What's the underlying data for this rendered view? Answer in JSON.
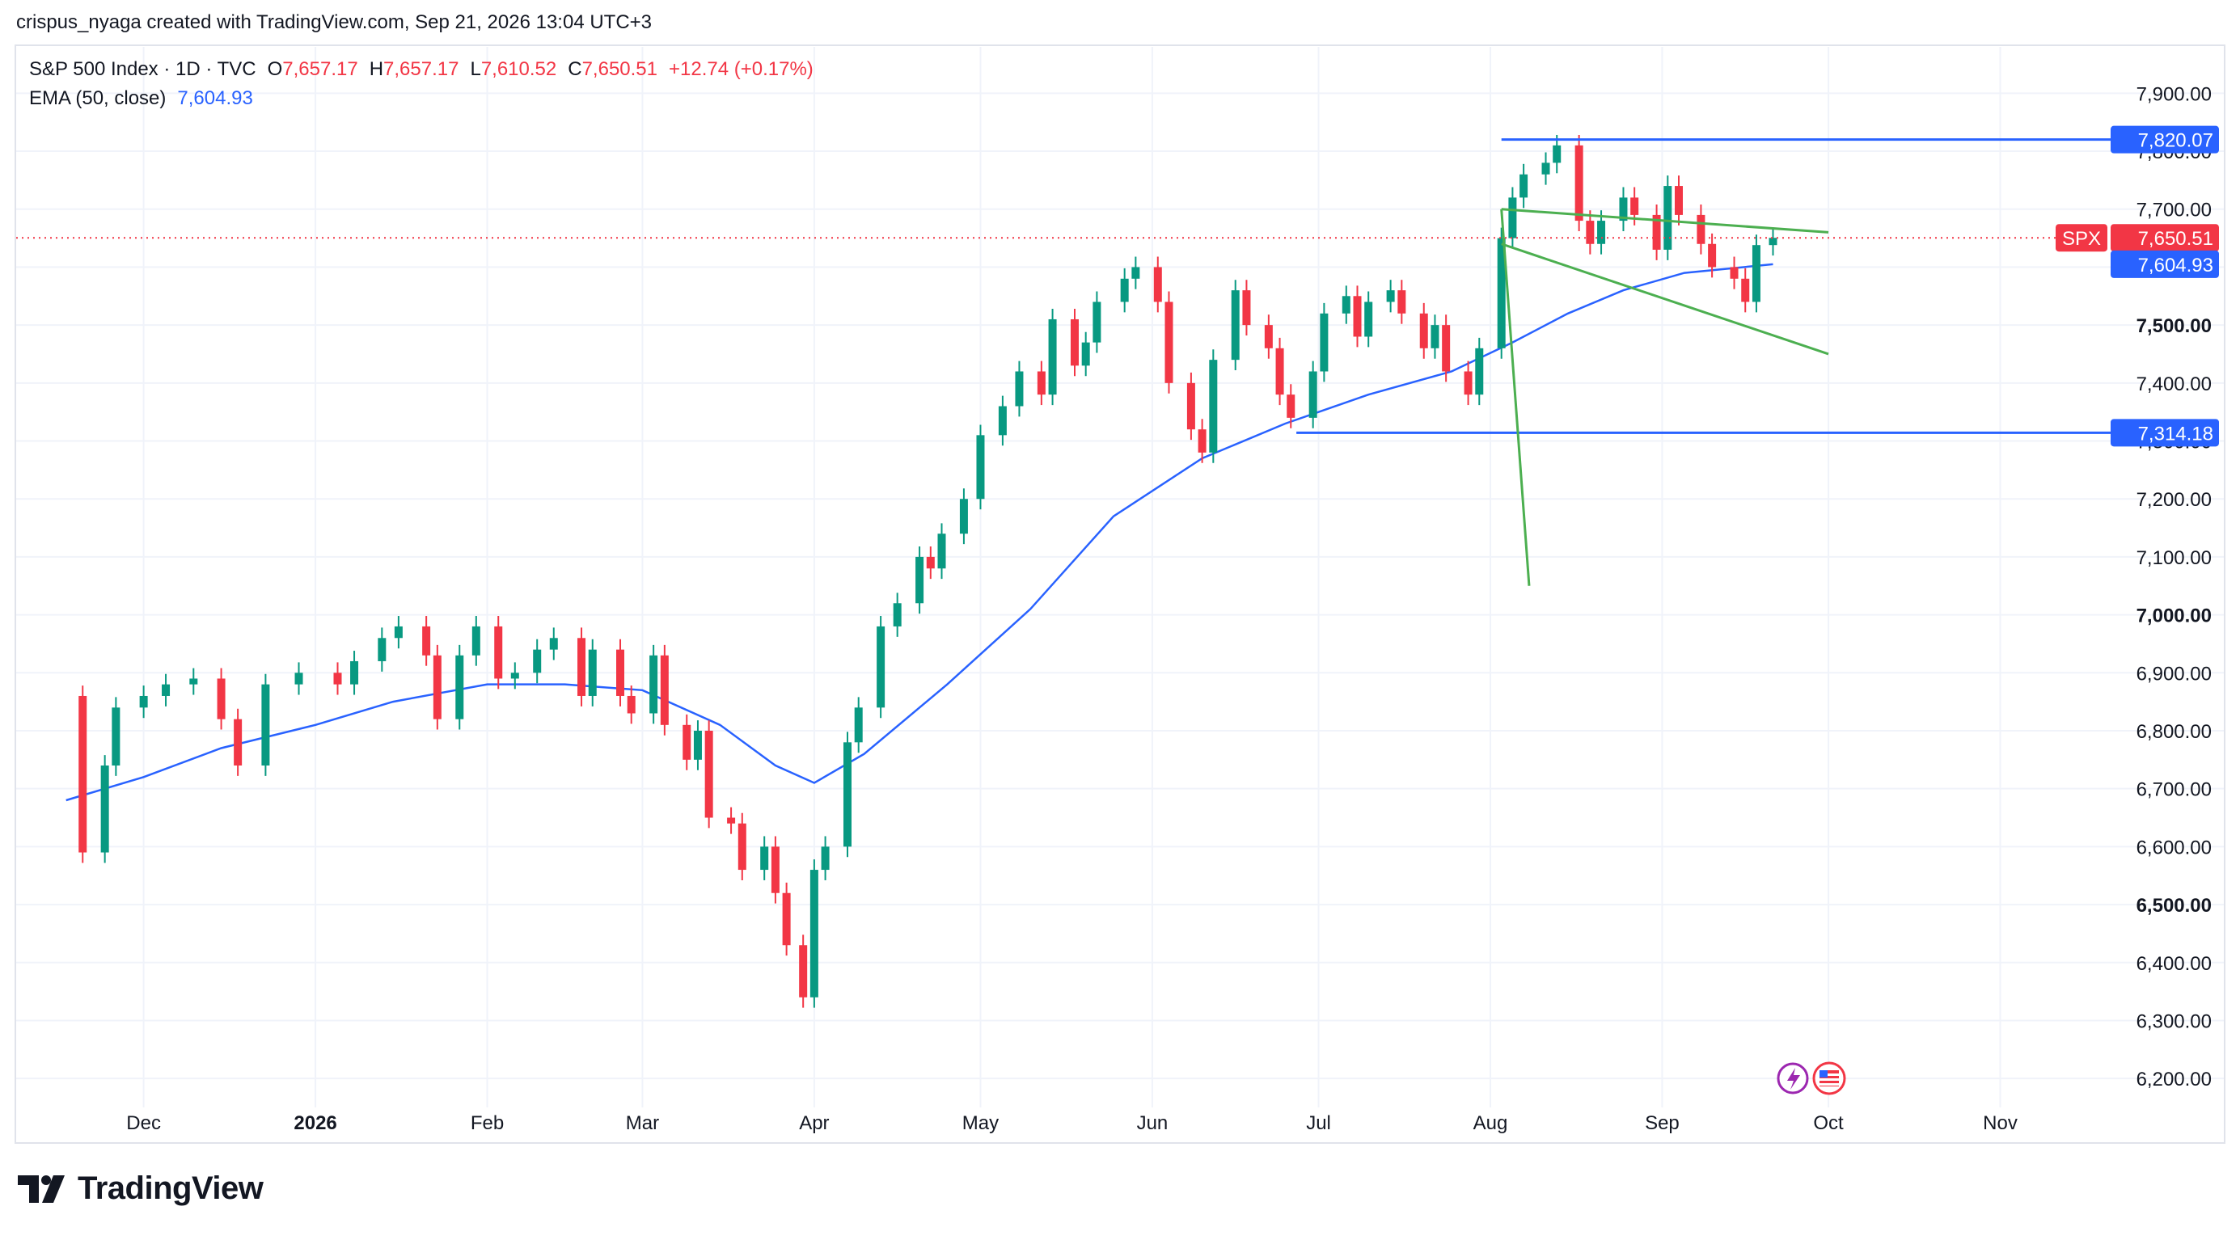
{
  "header": {
    "credit": "crispus_nyaga created with TradingView.com, Sep 21, 2026 13:04 UTC+3"
  },
  "legend": {
    "symbol": "S&P 500 Index · 1D · TVC",
    "open_label": "O",
    "open": "7,657.17",
    "high_label": "H",
    "high": "7,657.17",
    "low_label": "L",
    "low": "7,610.52",
    "close_label": "C",
    "close": "7,650.51",
    "change": "+12.74 (+0.17%)",
    "ema_label": "EMA (50, close)",
    "ema_value": "7,604.93"
  },
  "colors": {
    "up": "#089981",
    "down": "#f23645",
    "ema": "#2962ff",
    "hline": "#2962ff",
    "channel": "#4caf50",
    "grid": "#f0f3fa",
    "price_line": "#f23645"
  },
  "chart_data": {
    "type": "candlestick",
    "symbol": "SPX",
    "timeframe": "1D",
    "ylim": [
      6150,
      7980
    ],
    "y_ticks": [
      "6,200.00",
      "6,300.00",
      "6,400.00",
      "6,500.00",
      "6,600.00",
      "6,700.00",
      "6,800.00",
      "6,900.00",
      "7,000.00",
      "7,100.00",
      "7,200.00",
      "7,300.00",
      "7,400.00",
      "7,500.00",
      "7,600.00",
      "7,700.00",
      "7,800.00",
      "7,900.00"
    ],
    "y_tick_values": [
      6200,
      6300,
      6400,
      6500,
      6600,
      6700,
      6800,
      6900,
      7000,
      7100,
      7200,
      7300,
      7400,
      7500,
      7600,
      7700,
      7800,
      7900
    ],
    "bold_ticks": [
      6500,
      7000,
      7500
    ],
    "x_labels": [
      {
        "label": "Dec",
        "date": "2025-12-01"
      },
      {
        "label": "2026",
        "date": "2026-01-01",
        "bold": true
      },
      {
        "label": "Feb",
        "date": "2026-02-01"
      },
      {
        "label": "Mar",
        "date": "2026-03-01"
      },
      {
        "label": "Apr",
        "date": "2026-04-01"
      },
      {
        "label": "May",
        "date": "2026-05-01"
      },
      {
        "label": "Jun",
        "date": "2026-06-01"
      },
      {
        "label": "Jul",
        "date": "2026-07-01"
      },
      {
        "label": "Aug",
        "date": "2026-08-01"
      },
      {
        "label": "Sep",
        "date": "2026-09-01"
      },
      {
        "label": "Oct",
        "date": "2026-10-01"
      },
      {
        "label": "Nov",
        "date": "2026-11-01"
      }
    ],
    "close_series": [
      [
        "2025-11-17",
        6860
      ],
      [
        "2025-11-20",
        6590
      ],
      [
        "2025-11-24",
        6740
      ],
      [
        "2025-11-26",
        6840
      ],
      [
        "2025-12-01",
        6860
      ],
      [
        "2025-12-05",
        6880
      ],
      [
        "2025-12-10",
        6890
      ],
      [
        "2025-12-15",
        6820
      ],
      [
        "2025-12-18",
        6740
      ],
      [
        "2025-12-23",
        6880
      ],
      [
        "2025-12-29",
        6900
      ],
      [
        "2026-01-05",
        6880
      ],
      [
        "2026-01-08",
        6920
      ],
      [
        "2026-01-13",
        6960
      ],
      [
        "2026-01-16",
        6980
      ],
      [
        "2026-01-21",
        6930
      ],
      [
        "2026-01-23",
        6820
      ],
      [
        "2026-01-27",
        6930
      ],
      [
        "2026-01-30",
        6980
      ],
      [
        "2026-02-03",
        6890
      ],
      [
        "2026-02-06",
        6900
      ],
      [
        "2026-02-10",
        6940
      ],
      [
        "2026-02-13",
        6960
      ],
      [
        "2026-02-18",
        6860
      ],
      [
        "2026-02-20",
        6940
      ],
      [
        "2026-02-25",
        6860
      ],
      [
        "2026-02-27",
        6830
      ],
      [
        "2026-03-03",
        6930
      ],
      [
        "2026-03-05",
        6810
      ],
      [
        "2026-03-09",
        6750
      ],
      [
        "2026-03-11",
        6800
      ],
      [
        "2026-03-13",
        6650
      ],
      [
        "2026-03-17",
        6640
      ],
      [
        "2026-03-19",
        6560
      ],
      [
        "2026-03-23",
        6600
      ],
      [
        "2026-03-25",
        6520
      ],
      [
        "2026-03-27",
        6430
      ],
      [
        "2026-03-30",
        6340
      ],
      [
        "2026-04-01",
        6560
      ],
      [
        "2026-04-03",
        6600
      ],
      [
        "2026-04-07",
        6780
      ],
      [
        "2026-04-09",
        6840
      ],
      [
        "2026-04-13",
        6980
      ],
      [
        "2026-04-16",
        7020
      ],
      [
        "2026-04-20",
        7100
      ],
      [
        "2026-04-22",
        7080
      ],
      [
        "2026-04-24",
        7140
      ],
      [
        "2026-04-28",
        7200
      ],
      [
        "2026-05-01",
        7310
      ],
      [
        "2026-05-05",
        7360
      ],
      [
        "2026-05-08",
        7420
      ],
      [
        "2026-05-12",
        7380
      ],
      [
        "2026-05-14",
        7510
      ],
      [
        "2026-05-18",
        7430
      ],
      [
        "2026-05-20",
        7470
      ],
      [
        "2026-05-22",
        7540
      ],
      [
        "2026-05-27",
        7580
      ],
      [
        "2026-05-29",
        7600
      ],
      [
        "2026-06-02",
        7540
      ],
      [
        "2026-06-04",
        7400
      ],
      [
        "2026-06-08",
        7320
      ],
      [
        "2026-06-10",
        7280
      ],
      [
        "2026-06-12",
        7440
      ],
      [
        "2026-06-16",
        7560
      ],
      [
        "2026-06-18",
        7500
      ],
      [
        "2026-06-22",
        7460
      ],
      [
        "2026-06-24",
        7380
      ],
      [
        "2026-06-26",
        7340
      ],
      [
        "2026-06-30",
        7420
      ],
      [
        "2026-07-02",
        7520
      ],
      [
        "2026-07-06",
        7550
      ],
      [
        "2026-07-08",
        7480
      ],
      [
        "2026-07-10",
        7540
      ],
      [
        "2026-07-14",
        7560
      ],
      [
        "2026-07-16",
        7520
      ],
      [
        "2026-07-20",
        7460
      ],
      [
        "2026-07-22",
        7500
      ],
      [
        "2026-07-24",
        7420
      ],
      [
        "2026-07-28",
        7380
      ],
      [
        "2026-07-30",
        7460
      ],
      [
        "2026-08-03",
        7650
      ],
      [
        "2026-08-05",
        7720
      ],
      [
        "2026-08-07",
        7760
      ],
      [
        "2026-08-11",
        7780
      ],
      [
        "2026-08-13",
        7810
      ],
      [
        "2026-08-17",
        7680
      ],
      [
        "2026-08-19",
        7640
      ],
      [
        "2026-08-21",
        7680
      ],
      [
        "2026-08-25",
        7720
      ],
      [
        "2026-08-27",
        7690
      ],
      [
        "2026-08-31",
        7630
      ],
      [
        "2026-09-02",
        7740
      ],
      [
        "2026-09-04",
        7690
      ],
      [
        "2026-09-08",
        7640
      ],
      [
        "2026-09-10",
        7600
      ],
      [
        "2026-09-14",
        7580
      ],
      [
        "2026-09-16",
        7540
      ],
      [
        "2026-09-18",
        7638
      ],
      [
        "2026-09-21",
        7650.51
      ]
    ],
    "ema_series": [
      [
        "2025-11-17",
        6680
      ],
      [
        "2025-12-01",
        6720
      ],
      [
        "2025-12-15",
        6770
      ],
      [
        "2026-01-01",
        6810
      ],
      [
        "2026-01-15",
        6850
      ],
      [
        "2026-02-01",
        6880
      ],
      [
        "2026-02-15",
        6880
      ],
      [
        "2026-03-01",
        6870
      ],
      [
        "2026-03-15",
        6810
      ],
      [
        "2026-03-25",
        6740
      ],
      [
        "2026-04-01",
        6710
      ],
      [
        "2026-04-10",
        6760
      ],
      [
        "2026-04-25",
        6880
      ],
      [
        "2026-05-10",
        7010
      ],
      [
        "2026-05-25",
        7170
      ],
      [
        "2026-06-10",
        7270
      ],
      [
        "2026-06-25",
        7330
      ],
      [
        "2026-07-10",
        7380
      ],
      [
        "2026-07-25",
        7420
      ],
      [
        "2026-08-05",
        7470
      ],
      [
        "2026-08-15",
        7520
      ],
      [
        "2026-08-25",
        7560
      ],
      [
        "2026-09-05",
        7590
      ],
      [
        "2026-09-21",
        7604.93
      ]
    ],
    "horizontal_lines": [
      {
        "value": 7820.07,
        "label": "7,820.07",
        "from": "2026-08-03"
      },
      {
        "value": 7314.18,
        "label": "7,314.18",
        "from": "2026-06-27"
      }
    ],
    "channel_lines": [
      {
        "from": [
          "2026-08-03",
          7700
        ],
        "to": [
          "2026-10-01",
          7660
        ]
      },
      {
        "from": [
          "2026-08-03",
          7640
        ],
        "to": [
          "2026-10-01",
          7450
        ]
      },
      {
        "from": [
          "2026-08-03",
          7700
        ],
        "to": [
          "2026-08-08",
          7050
        ]
      }
    ],
    "last_price": {
      "symbol": "SPX",
      "value": 7650.51,
      "label": "7,650.51"
    },
    "ema_label": {
      "value": 7604.93,
      "label": "7,604.93"
    }
  },
  "footer": {
    "logo_text": "TradingView"
  }
}
